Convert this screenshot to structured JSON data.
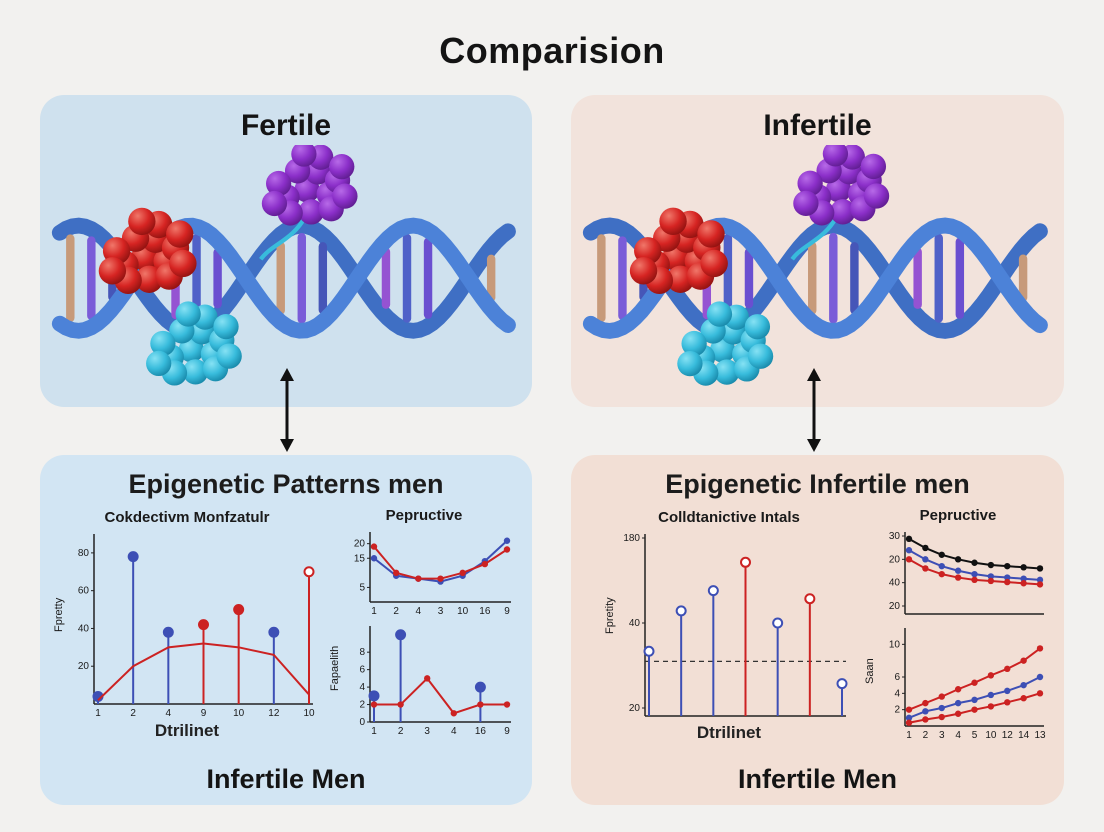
{
  "title": "Comparision",
  "panels": {
    "fertile": {
      "title": "Fertile"
    },
    "infertile": {
      "title": "Infertile"
    },
    "fertile_patterns": {
      "heading": "Epigenetic Patterns men",
      "footer": "Infertile Men"
    },
    "infertile_patterns": {
      "heading": "Epigenetic Infertile men",
      "footer": "Infertile Men"
    }
  },
  "colors": {
    "panel_blue": "#cfe1ee",
    "panel_blue_bottom": "#d2e5f3",
    "panel_pink": "#f2e3dc",
    "panel_pink_bottom": "#f2dfd5",
    "stem_blue": "#3d4fb5",
    "line_red": "#cc2222",
    "line_black": "#111111",
    "dna_strand_blue": "#4c82d8",
    "cluster_purple": "#8b2fc9",
    "cluster_red": "#d62422",
    "cluster_cyan": "#38bcdc"
  },
  "chart_data": {
    "fertile_left": {
      "type": "stem+line",
      "title": "Cokdectivm Monfzatulr",
      "y_label": "Fpretty",
      "x_label": "Dtrilinet",
      "y_ticks": [
        "80",
        "60",
        "40",
        "20"
      ],
      "x_ticks": [
        "1",
        "2",
        "4",
        "9",
        "10",
        "12",
        "10"
      ],
      "ymax": 90,
      "series": [
        {
          "type": "stem",
          "values": [
            4,
            78,
            38,
            42,
            50,
            38,
            70
          ],
          "colors": [
            "#3d4fb5",
            "#3d4fb5",
            "#3d4fb5",
            "#cc2222",
            "#cc2222",
            "#3d4fb5",
            "#cc2222"
          ],
          "open": [
            0,
            0,
            0,
            0,
            0,
            0,
            1
          ]
        },
        {
          "type": "line",
          "color": "#cc2222",
          "markers": false,
          "values": [
            2,
            20,
            30,
            32,
            30,
            26,
            5
          ]
        }
      ]
    },
    "fertile_top_right": {
      "type": "line",
      "title": "Pepructive",
      "y_ticks": [
        "20",
        "15",
        "5"
      ],
      "x_ticks": [
        "1",
        "2",
        "4",
        "3",
        "10",
        "16",
        "9"
      ],
      "ymax": 24,
      "series": [
        {
          "type": "line",
          "color": "#3d4fb5",
          "markers": true,
          "values": [
            15,
            9,
            8,
            7,
            9,
            14,
            21
          ]
        },
        {
          "type": "line",
          "color": "#cc2222",
          "markers": true,
          "values": [
            19,
            10,
            8,
            8,
            10,
            13,
            18
          ]
        }
      ]
    },
    "fertile_bottom_right": {
      "type": "stem+line",
      "y_label": "Fapaelith",
      "y_ticks": [
        "8",
        "6",
        "4",
        "2",
        "0"
      ],
      "x_ticks": [
        "1",
        "2",
        "3",
        "4",
        "16",
        "9"
      ],
      "ymax": 11,
      "series": [
        {
          "type": "stem",
          "values": [
            3,
            10,
            null,
            null,
            4,
            null
          ],
          "colors": [
            "#3d4fb5",
            "#3d4fb5",
            "#3d4fb5",
            "#3d4fb5",
            "#3d4fb5",
            "#3d4fb5"
          ],
          "open": [
            0,
            0,
            0,
            0,
            0,
            0
          ]
        },
        {
          "type": "line",
          "color": "#cc2222",
          "markers": true,
          "values": [
            2,
            2,
            5,
            1,
            2,
            2
          ]
        }
      ]
    },
    "infertile_left": {
      "type": "stem",
      "title": "Colldtanictive Intals",
      "y_label": "Fpretity",
      "x_label": "Dtrilinet",
      "y_ticks": [
        "180",
        "40",
        "20"
      ],
      "x_ticks": [],
      "ymax": 90,
      "dashed_at": 27,
      "series": [
        {
          "type": "stem",
          "values": [
            32,
            52,
            62,
            76,
            46,
            58,
            16
          ],
          "colors": [
            "#3d4fb5",
            "#3d4fb5",
            "#3d4fb5",
            "#cc2222",
            "#3d4fb5",
            "#cc2222",
            "#3d4fb5"
          ],
          "open": [
            1,
            1,
            1,
            1,
            1,
            1,
            1
          ]
        }
      ]
    },
    "infertile_top_right": {
      "type": "line",
      "title": "Pepructive",
      "y_ticks": [
        "30",
        "20",
        "40",
        "20"
      ],
      "x_ticks": [],
      "ymax": 36,
      "series": [
        {
          "type": "line",
          "color": "#111111",
          "markers": true,
          "values": [
            33,
            29,
            26,
            24,
            22.5,
            21.5,
            21,
            20.5,
            20
          ]
        },
        {
          "type": "line",
          "color": "#3d4fb5",
          "markers": true,
          "values": [
            28,
            24,
            21,
            19,
            17.5,
            16.5,
            16,
            15.5,
            15
          ]
        },
        {
          "type": "line",
          "color": "#cc2222",
          "markers": true,
          "values": [
            24,
            20,
            17.5,
            16,
            15,
            14.5,
            14,
            13.5,
            13
          ]
        }
      ]
    },
    "infertile_bottom_right": {
      "type": "line",
      "y_label": "Saan",
      "y_ticks": [
        "4",
        "10",
        "2",
        "6"
      ],
      "x_ticks": [
        "1",
        "2",
        "3",
        "4",
        "5",
        "10",
        "12",
        "14",
        "13"
      ],
      "ymax": 12,
      "series": [
        {
          "type": "line",
          "color": "#cc2222",
          "markers": true,
          "values": [
            2,
            2.8,
            3.6,
            4.5,
            5.3,
            6.2,
            7,
            8,
            9.5
          ]
        },
        {
          "type": "line",
          "color": "#3d4fb5",
          "markers": true,
          "values": [
            1,
            1.8,
            2.2,
            2.8,
            3.2,
            3.8,
            4.3,
            5,
            6
          ]
        },
        {
          "type": "line",
          "color": "#cc2222",
          "markers": true,
          "values": [
            0.4,
            0.8,
            1.1,
            1.5,
            2,
            2.4,
            2.9,
            3.4,
            4
          ]
        }
      ]
    }
  }
}
